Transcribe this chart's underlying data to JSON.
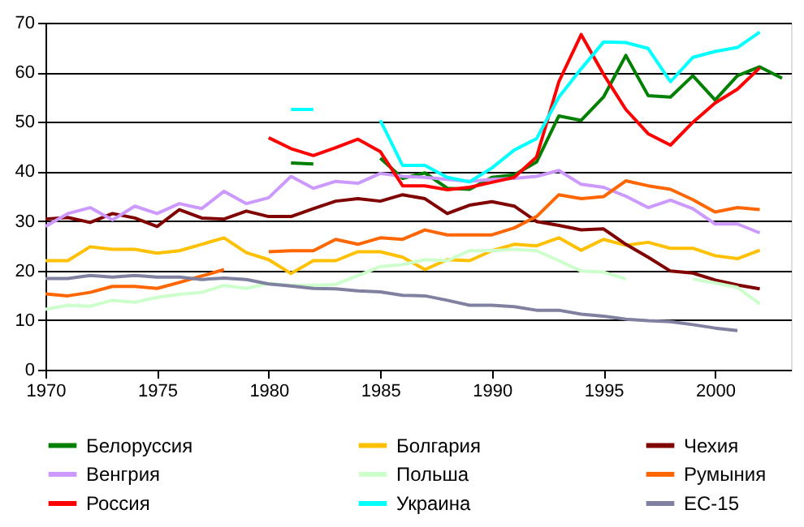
{
  "chart_data": {
    "type": "line",
    "x": [
      1970,
      1971,
      1972,
      1973,
      1974,
      1975,
      1976,
      1977,
      1978,
      1979,
      1980,
      1981,
      1982,
      1983,
      1984,
      1985,
      1986,
      1987,
      1988,
      1989,
      1990,
      1991,
      1992,
      1993,
      1994,
      1995,
      1996,
      1997,
      1998,
      1999,
      2000,
      2001,
      2002,
      2003
    ],
    "xlim": [
      1970,
      2003.4
    ],
    "xticks": [
      1970,
      1975,
      1980,
      1985,
      1990,
      1995,
      2000
    ],
    "ylim": [
      0,
      70
    ],
    "yticks": [
      0,
      10,
      20,
      30,
      40,
      50,
      60,
      70
    ],
    "grid": "y",
    "legend": "bottom",
    "marker": "none",
    "line_style": "solid",
    "series": [
      {
        "name": "Белоруссия",
        "color": "#008000",
        "values": [
          null,
          null,
          null,
          null,
          null,
          null,
          null,
          null,
          null,
          null,
          null,
          41.7,
          41.5,
          null,
          null,
          42.7,
          38.6,
          39.7,
          36.6,
          36.4,
          38.8,
          39.3,
          41.9,
          51.2,
          50.3,
          55,
          63.4,
          55.3,
          55,
          59.3,
          54.4,
          59.3,
          61.1,
          58.8
        ]
      },
      {
        "name": "Болгария",
        "color": "#ffc000",
        "values": [
          22,
          22,
          24.8,
          24.3,
          24.3,
          23.5,
          24,
          25.3,
          26.6,
          23.6,
          22.2,
          19.4,
          22,
          22,
          23.8,
          23.8,
          22.7,
          20.2,
          22.2,
          22,
          24,
          25.3,
          25,
          26.6,
          24.1,
          26.3,
          25.1,
          25.7,
          24.5,
          24.5,
          23,
          22.4,
          24.1,
          null
        ]
      },
      {
        "name": "Чехия",
        "color": "#800000",
        "values": [
          30.4,
          30.7,
          29.7,
          31.5,
          30.6,
          28.9,
          32.3,
          30.6,
          30.4,
          32,
          30.9,
          30.9,
          32.5,
          34,
          34.5,
          34,
          35.3,
          34.5,
          31.5,
          33.2,
          33.9,
          33,
          29.9,
          29.1,
          28.2,
          28.4,
          25.3,
          22.7,
          19.9,
          19.5,
          18.1,
          17.1,
          16.3,
          null
        ]
      },
      {
        "name": "Венгрия",
        "color": "#cc99ff",
        "values": [
          28.9,
          31.5,
          32.7,
          30.2,
          33,
          31.5,
          33.5,
          32.5,
          36,
          33.5,
          34.7,
          39,
          36.6,
          38,
          37.6,
          39.6,
          39,
          38.8,
          38.4,
          38,
          38.4,
          38.6,
          39,
          40.2,
          37.4,
          36.8,
          35,
          32.7,
          34.2,
          32.5,
          29.4,
          29.4,
          27.6,
          null
        ]
      },
      {
        "name": "Польша",
        "color": "#ccffcc",
        "values": [
          12.2,
          13,
          12.8,
          14,
          13.6,
          14.6,
          15.2,
          15.6,
          17,
          16.4,
          17.4,
          17,
          17,
          17.2,
          19,
          20.8,
          21.2,
          22.2,
          22,
          24,
          24,
          24.3,
          24,
          22,
          19.9,
          19.7,
          18.3,
          null,
          null,
          18.3,
          17.5,
          16.6,
          13.3,
          null
        ]
      },
      {
        "name": "Румыния",
        "color": "#ff6600",
        "values": [
          15.3,
          14.9,
          15.6,
          16.8,
          16.8,
          16.4,
          17.6,
          18.9,
          20.2,
          null,
          23.8,
          24,
          24,
          26.3,
          25.3,
          26.6,
          26.3,
          28.2,
          27.2,
          27.2,
          27.2,
          28.6,
          30.9,
          35.3,
          34.5,
          34.9,
          38.1,
          37.1,
          36.4,
          34.3,
          31.8,
          32.7,
          32.3,
          null
        ]
      },
      {
        "name": "Россия",
        "color": "#ff0000",
        "values": [
          null,
          null,
          null,
          null,
          null,
          null,
          null,
          null,
          null,
          null,
          46.8,
          44.6,
          43.2,
          44.8,
          46.5,
          44,
          37.1,
          37.1,
          36.3,
          36.8,
          37.8,
          38.8,
          42.9,
          58.1,
          67.6,
          59.6,
          52.5,
          47.6,
          45.3,
          49.9,
          53.8,
          56.6,
          60.9,
          null
        ]
      },
      {
        "name": "Украина",
        "color": "#00ffff",
        "values": [
          null,
          null,
          null,
          null,
          null,
          null,
          null,
          null,
          null,
          null,
          null,
          52.5,
          52.5,
          null,
          null,
          50.3,
          41.2,
          41.2,
          38.8,
          37.9,
          40.7,
          44.3,
          46.6,
          55,
          60.7,
          66.1,
          66,
          64.8,
          58.1,
          63,
          64.2,
          65,
          68.1,
          null
        ]
      },
      {
        "name": "ЕС-15",
        "color": "#8080a0",
        "values": [
          18.4,
          18.4,
          19,
          18.7,
          19,
          18.7,
          18.7,
          18.2,
          18.5,
          18.2,
          17.3,
          16.9,
          16.4,
          16.3,
          15.9,
          15.7,
          15,
          14.9,
          14,
          13,
          13,
          12.7,
          12,
          12,
          11.2,
          10.8,
          10.2,
          9.9,
          9.7,
          9.1,
          8.4,
          7.9,
          null,
          null
        ]
      }
    ]
  }
}
